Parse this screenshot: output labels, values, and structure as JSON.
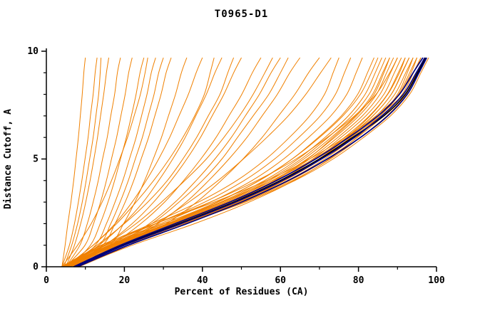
{
  "title": "T0965-D1",
  "chart_data": {
    "type": "line",
    "title": "T0965-D1",
    "xlabel": "Percent of Residues (CA)",
    "ylabel": "Distance Cutoff, A",
    "xlim": [
      0,
      100
    ],
    "ylim": [
      0,
      10
    ],
    "grid": false,
    "legend": "none",
    "x_major_ticks": [
      0,
      20,
      40,
      60,
      80,
      100
    ],
    "x_minor_ticks": [
      10,
      30,
      50,
      70,
      90
    ],
    "y_major_ticks": [
      0,
      5,
      10
    ],
    "y_minor_ticks": [
      1,
      2,
      3,
      4,
      6,
      7,
      8,
      9
    ],
    "colors": {
      "orange": "#f08000",
      "navy": "#000080",
      "black": "#000000"
    },
    "y_levels": [
      0,
      1,
      2,
      3,
      4,
      5,
      6,
      7,
      8,
      9,
      9.7
    ],
    "series": [
      {
        "color": "orange",
        "x": [
          4,
          4.8,
          5.5,
          6.3,
          7,
          7.6,
          8.2,
          8.7,
          9.2,
          9.6,
          10
        ]
      },
      {
        "color": "orange",
        "x": [
          4,
          5.9,
          7.2,
          8.2,
          9.1,
          9.9,
          10.7,
          11.3,
          12,
          12.5,
          13
        ]
      },
      {
        "color": "orange",
        "x": [
          4.5,
          6.5,
          8,
          9.2,
          10.2,
          11.1,
          12,
          12.7,
          13.4,
          13.8,
          14
        ]
      },
      {
        "color": "orange",
        "x": [
          5,
          7.2,
          8.8,
          10.1,
          11.2,
          12.2,
          13.1,
          13.9,
          14.7,
          15.4,
          16
        ]
      },
      {
        "color": "orange",
        "x": [
          5,
          8.6,
          10.5,
          12,
          13.3,
          14.4,
          15.6,
          16.5,
          17.5,
          18.2,
          19
        ]
      },
      {
        "color": "orange",
        "x": [
          5,
          9.9,
          12.1,
          13.9,
          15.4,
          16.7,
          18,
          19.1,
          20.2,
          21.1,
          22
        ]
      },
      {
        "color": "orange",
        "x": [
          6,
          11.3,
          13.8,
          15.8,
          17.5,
          19,
          20.5,
          21.8,
          23,
          24,
          25
        ]
      },
      {
        "color": "orange",
        "x": [
          4,
          8,
          11.5,
          14.3,
          16.7,
          18.8,
          20.8,
          22.5,
          24.1,
          25.3,
          26
        ]
      },
      {
        "color": "orange",
        "x": [
          6,
          12.6,
          15.4,
          17.6,
          19.6,
          21.3,
          23,
          24.4,
          25.8,
          26.9,
          28
        ]
      },
      {
        "color": "orange",
        "x": [
          5,
          13.5,
          16.5,
          18.9,
          21,
          22.8,
          24.6,
          26.1,
          27.6,
          28.8,
          30
        ]
      },
      {
        "color": "orange",
        "x": [
          6,
          14.4,
          17.6,
          20.2,
          22.4,
          24.3,
          26.2,
          27.8,
          29.4,
          30.7,
          32
        ]
      },
      {
        "color": "orange",
        "x": [
          7,
          16.2,
          19.8,
          22.7,
          25.2,
          27.4,
          29.5,
          31.3,
          33.1,
          34.6,
          36
        ]
      },
      {
        "color": "orange",
        "x": [
          4.8,
          12,
          17.6,
          22,
          25.6,
          28.8,
          31.6,
          34,
          36.4,
          38.4,
          40
        ]
      },
      {
        "color": "orange",
        "x": [
          5,
          12,
          18,
          23,
          27.5,
          31.5,
          35,
          38,
          40.5,
          42,
          43
        ]
      },
      {
        "color": "orange",
        "x": [
          5.4,
          13.5,
          19.8,
          24.8,
          28.8,
          32.4,
          35.6,
          38.3,
          41,
          43.2,
          45
        ]
      },
      {
        "color": "orange",
        "x": [
          5,
          13,
          20,
          26,
          31,
          35,
          38.5,
          41.5,
          44.5,
          46.5,
          48
        ]
      },
      {
        "color": "orange",
        "x": [
          6,
          15,
          22,
          27.5,
          32,
          36,
          39.5,
          42.5,
          45.5,
          48,
          50
        ]
      },
      {
        "color": "orange",
        "x": [
          6.6,
          16.5,
          24.2,
          30.3,
          35.2,
          39.6,
          43.5,
          46.8,
          50.1,
          52.8,
          55
        ]
      },
      {
        "color": "orange",
        "x": [
          6,
          15,
          23,
          29.5,
          35.5,
          41,
          45.5,
          49.5,
          53,
          56,
          58
        ]
      },
      {
        "color": "orange",
        "x": [
          7.2,
          18,
          26.4,
          33,
          38.4,
          43.2,
          47.4,
          51,
          54.6,
          57.6,
          60
        ]
      },
      {
        "color": "orange",
        "x": [
          6,
          17,
          27,
          34,
          40,
          45,
          49,
          53,
          57,
          60,
          62
        ]
      },
      {
        "color": "orange",
        "x": [
          7.8,
          19.5,
          28.6,
          35.8,
          41.6,
          46.8,
          51.4,
          55.3,
          59.2,
          62.4,
          65
        ]
      },
      {
        "color": "orange",
        "x": [
          8.4,
          21,
          30.8,
          38.5,
          44.8,
          50.4,
          55.3,
          59.5,
          63.7,
          67.2,
          70
        ]
      },
      {
        "color": "orange",
        "x": [
          7,
          18,
          28,
          36.5,
          44,
          50.5,
          56.5,
          62,
          66.5,
          70.3,
          73
        ]
      },
      {
        "color": "orange",
        "x": [
          3.8,
          14.3,
          27,
          39,
          48.8,
          56.3,
          62.3,
          67.5,
          71.3,
          73.5,
          75
        ]
      },
      {
        "color": "orange",
        "x": [
          3.9,
          14.8,
          28.1,
          40.6,
          50.7,
          58.5,
          64.7,
          70.2,
          74.1,
          76.4,
          78
        ]
      },
      {
        "color": "orange",
        "x": [
          4,
          15.4,
          29.2,
          42.1,
          52.7,
          60.8,
          67.2,
          72.9,
          77,
          79.4,
          81
        ]
      },
      {
        "color": "orange",
        "x": [
          4.2,
          16,
          30.2,
          43.7,
          54.6,
          63,
          69.7,
          75.6,
          79.8,
          82.3,
          84
        ]
      },
      {
        "color": "orange",
        "x": [
          5,
          17,
          31,
          44,
          54.5,
          63,
          70,
          76,
          80.5,
          83.3,
          85
        ]
      },
      {
        "color": "orange",
        "x": [
          4.3,
          16.3,
          31,
          44.7,
          55.9,
          64.5,
          71.4,
          77.4,
          81.7,
          84.3,
          86
        ]
      },
      {
        "color": "orange",
        "x": [
          4.4,
          16.5,
          31.3,
          45.2,
          56.6,
          65.3,
          72.2,
          78.3,
          82.7,
          85.3,
          87
        ]
      },
      {
        "color": "orange",
        "x": [
          4.4,
          16.7,
          31.7,
          45.8,
          57.2,
          66,
          73,
          79.2,
          83.6,
          86.2,
          88
        ]
      },
      {
        "color": "orange",
        "x": [
          6,
          20,
          35,
          48,
          58.5,
          67,
          73.5,
          79.5,
          84,
          86.5,
          88
        ]
      },
      {
        "color": "orange",
        "x": [
          5,
          16.9,
          32,
          46.3,
          57.9,
          66.8,
          73.9,
          80.1,
          84.6,
          87.2,
          89
        ]
      },
      {
        "color": "orange",
        "x": [
          4.5,
          17.1,
          32.4,
          46.8,
          58.5,
          67.5,
          74.7,
          81,
          85.5,
          88.2,
          90
        ]
      },
      {
        "color": "orange",
        "x": [
          4,
          14,
          28,
          42,
          54,
          64,
          72,
          79,
          84.5,
          88,
          90
        ]
      },
      {
        "color": "orange",
        "x": [
          4.6,
          17.3,
          32.8,
          47.3,
          59.2,
          68.3,
          75.5,
          81.9,
          86.5,
          89.2,
          91
        ]
      },
      {
        "color": "orange",
        "x": [
          4.6,
          17.5,
          33.1,
          47.8,
          59.8,
          69,
          76.4,
          82.8,
          87.4,
          90.2,
          92
        ]
      },
      {
        "color": "orange",
        "x": [
          6,
          20,
          36,
          50,
          61,
          70,
          77,
          83,
          87.5,
          90.5,
          92
        ]
      },
      {
        "color": "orange",
        "x": [
          4.7,
          17.7,
          33.5,
          48.4,
          60.5,
          69.8,
          77.2,
          83.7,
          88.4,
          91.1,
          93
        ]
      },
      {
        "color": "orange",
        "x": [
          5.5,
          19,
          34.5,
          49,
          60.7,
          69.9,
          77.3,
          83.7,
          88.4,
          91.2,
          93
        ]
      },
      {
        "color": "orange",
        "x": [
          4.7,
          17.9,
          33.8,
          48.9,
          61.1,
          70.5,
          78,
          84.6,
          89.3,
          92.1,
          94
        ]
      },
      {
        "color": "orange",
        "x": [
          8,
          22,
          38,
          52,
          63.5,
          72.5,
          79.5,
          85.5,
          90,
          92.5,
          94
        ]
      },
      {
        "color": "orange",
        "x": [
          4.8,
          18.1,
          34.2,
          49.4,
          61.8,
          71.3,
          78.9,
          85.5,
          90.3,
          93.1,
          95
        ]
      },
      {
        "color": "orange",
        "x": [
          5,
          17,
          33,
          48,
          60,
          70,
          78,
          85.5,
          90.5,
          93.5,
          95
        ]
      },
      {
        "color": "orange",
        "x": [
          4.8,
          18.2,
          34.6,
          49.9,
          62.4,
          72,
          79.7,
          86.4,
          91.2,
          94.1,
          96
        ]
      },
      {
        "color": "orange",
        "x": [
          5,
          16,
          30,
          45,
          58,
          68.5,
          77,
          84.5,
          90.5,
          94,
          96
        ]
      },
      {
        "color": "orange",
        "x": [
          4.9,
          18.4,
          34.9,
          50.4,
          63.1,
          72.8,
          80.5,
          87.3,
          92.2,
          95.1,
          97
        ]
      },
      {
        "color": "orange",
        "x": [
          4.5,
          15,
          28,
          43,
          56.5,
          67.5,
          76.5,
          85,
          91.5,
          95,
          97
        ]
      },
      {
        "color": "orange",
        "x": [
          4.9,
          18.6,
          35.3,
          51,
          63.7,
          73.5,
          81.3,
          88.2,
          93.1,
          96,
          98
        ]
      },
      {
        "color": "black",
        "x": [
          7.2,
          19.5,
          34,
          48,
          60,
          70,
          78.5,
          86.5,
          92,
          95.2,
          97.2
        ]
      },
      {
        "color": "navy",
        "x": [
          7,
          19,
          33,
          47,
          59,
          69,
          77.5,
          85,
          90.5,
          94,
          96.5
        ]
      },
      {
        "color": "navy",
        "x": [
          7.5,
          20,
          34.5,
          48.5,
          60.5,
          70.5,
          79,
          86,
          91.5,
          94.8,
          97
        ]
      },
      {
        "color": "navy",
        "x": [
          8,
          21,
          36,
          50,
          62,
          72,
          80.5,
          87.5,
          92.5,
          95.5,
          97.5
        ]
      }
    ]
  }
}
